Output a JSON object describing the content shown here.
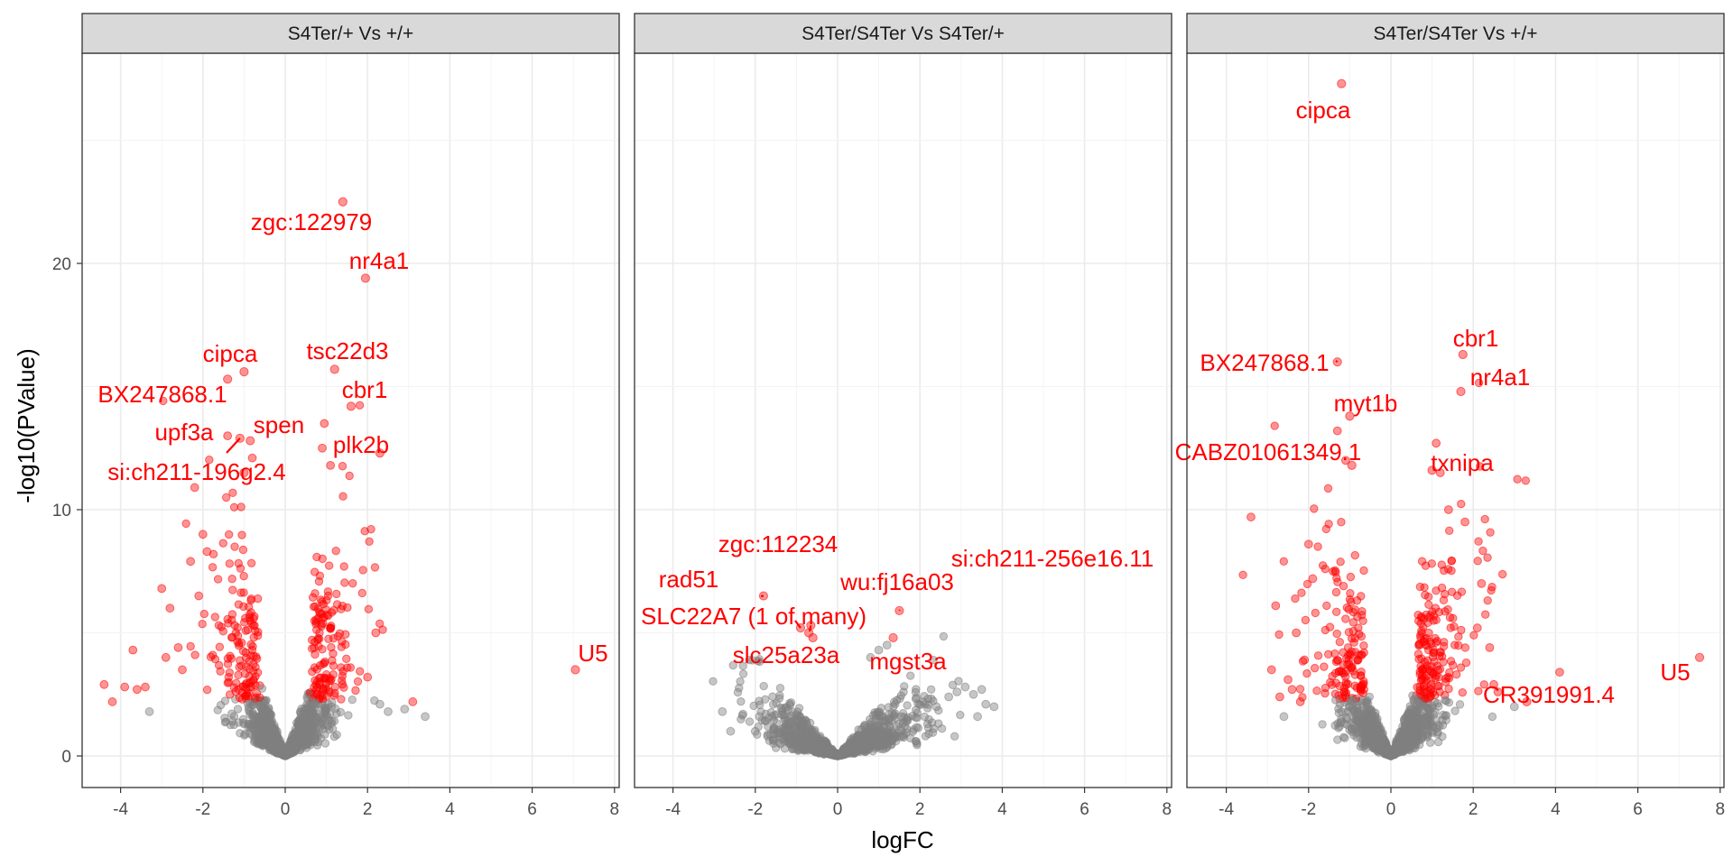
{
  "chart_data": {
    "type": "scatter",
    "xlabel": "logFC",
    "ylabel": "-log10(PValue)",
    "xlim": [
      -4.8,
      8.1
    ],
    "ylim": [
      -1.3,
      30.0
    ],
    "x_ticks": [
      -4,
      -2,
      0,
      2,
      4,
      6,
      8
    ],
    "y_ticks": [
      0,
      10,
      20
    ],
    "x_tick_labels": [
      "-4",
      "-2",
      "0",
      "2",
      "4",
      "6",
      "8"
    ],
    "y_tick_labels": [
      "0",
      "10",
      "20"
    ],
    "grid": true,
    "legend": "none",
    "colors": {
      "significant": "#ff0000",
      "not_significant": "#808080",
      "strip": "#d9d9d9"
    },
    "panels": [
      {
        "title": "S4Ter/+ Vs +/+",
        "labeled_genes": [
          {
            "label": "zgc:122979",
            "x": 1.4,
            "y": 22.5
          },
          {
            "label": "nr4a1",
            "x": 1.95,
            "y": 19.4
          },
          {
            "label": "cipca",
            "x": -1.0,
            "y": 15.6
          },
          {
            "label": "tsc22d3",
            "x": 1.2,
            "y": 15.7
          },
          {
            "label": "BX247868.1",
            "x": -1.4,
            "y": 15.3
          },
          {
            "label": "cbr1",
            "x": 1.6,
            "y": 14.2
          },
          {
            "label": "upf3a",
            "x": -1.1,
            "y": 12.9
          },
          {
            "label": "spen",
            "x": -0.85,
            "y": 12.8
          },
          {
            "label": "plk2b",
            "x": 2.3,
            "y": 12.3
          },
          {
            "label": "si:ch211-196g2.4",
            "x": -1.0,
            "y": 11.5
          },
          {
            "label": "U5",
            "x": 7.05,
            "y": 3.5
          }
        ],
        "extreme_points": [
          {
            "x": -2.2,
            "y": 10.9
          },
          {
            "x": -1.4,
            "y": 13.0
          },
          {
            "x": -0.8,
            "y": 12.1
          },
          {
            "x": 0.95,
            "y": 13.5
          },
          {
            "x": 0.9,
            "y": 12.5
          },
          {
            "x": 1.1,
            "y": 11.8
          },
          {
            "x": -4.4,
            "y": 2.9
          },
          {
            "x": -4.2,
            "y": 2.2
          },
          {
            "x": -3.9,
            "y": 2.8
          },
          {
            "x": -3.6,
            "y": 2.7
          },
          {
            "x": -3.4,
            "y": 2.8
          },
          {
            "x": -3.3,
            "y": 1.8
          },
          {
            "x": -3.7,
            "y": 4.3
          },
          {
            "x": -3.0,
            "y": 6.8
          },
          {
            "x": -2.9,
            "y": 4.0
          },
          {
            "x": -2.8,
            "y": 6.0
          },
          {
            "x": -2.6,
            "y": 4.4
          },
          {
            "x": -2.5,
            "y": 3.5
          },
          {
            "x": -2.3,
            "y": 7.9
          },
          {
            "x": -2.1,
            "y": 6.5
          },
          {
            "x": -2.0,
            "y": 9.0
          },
          {
            "x": -1.9,
            "y": 8.3
          },
          {
            "x": 2.2,
            "y": 5.0
          },
          {
            "x": 2.3,
            "y": 2.1
          },
          {
            "x": 2.5,
            "y": 1.8
          },
          {
            "x": 2.9,
            "y": 1.9
          },
          {
            "x": 3.1,
            "y": 2.2
          },
          {
            "x": 3.4,
            "y": 1.6
          },
          {
            "x": 2.0,
            "y": 3.2
          }
        ]
      },
      {
        "title": "S4Ter/S4Ter Vs S4Ter/+",
        "labeled_genes": [
          {
            "label": "zgc:112234",
            "x": -0.9,
            "y": 5.2
          },
          {
            "label": "rad51",
            "x": -1.8,
            "y": 6.5
          },
          {
            "label": "si:ch211-256e16.11",
            "x": 1.5,
            "y": 5.9
          },
          {
            "label": "wu:fj16a03",
            "x": -0.65,
            "y": 5.3
          },
          {
            "label": "SLC22A7 (1 of many)",
            "x": -0.7,
            "y": 5.0
          },
          {
            "label": "slc25a23a",
            "x": -0.6,
            "y": 4.8
          },
          {
            "label": "mgst3a",
            "x": 1.35,
            "y": 4.8
          }
        ],
        "extreme_points": [
          {
            "x": -2.8,
            "y": 1.8
          },
          {
            "x": -2.6,
            "y": 1.0
          },
          {
            "x": -2.3,
            "y": 1.7
          },
          {
            "x": -2.0,
            "y": 1.0
          },
          {
            "x": -1.9,
            "y": 1.6
          },
          {
            "x": -1.7,
            "y": 0.8
          },
          {
            "x": 0.8,
            "y": 4.0
          },
          {
            "x": 1.0,
            "y": 4.3
          },
          {
            "x": 1.2,
            "y": 4.5
          },
          {
            "x": 2.4,
            "y": 2.0
          },
          {
            "x": 2.7,
            "y": 2.4
          },
          {
            "x": 2.9,
            "y": 2.6
          },
          {
            "x": 3.1,
            "y": 2.8
          },
          {
            "x": 3.3,
            "y": 2.5
          },
          {
            "x": 3.5,
            "y": 2.7
          },
          {
            "x": 3.6,
            "y": 2.1
          },
          {
            "x": 3.8,
            "y": 2.0
          },
          {
            "x": 3.4,
            "y": 1.6
          }
        ]
      },
      {
        "title": "S4Ter/S4Ter Vs +/+",
        "labeled_genes": [
          {
            "label": "cipca",
            "x": -1.2,
            "y": 27.3
          },
          {
            "label": "cbr1",
            "x": 1.75,
            "y": 16.3
          },
          {
            "label": "BX247868.1",
            "x": -1.3,
            "y": 16.0
          },
          {
            "label": "nr4a1",
            "x": 1.7,
            "y": 14.8
          },
          {
            "label": "myt1b",
            "x": -1.0,
            "y": 13.8
          },
          {
            "label": "CABZ01061349.1",
            "x": -0.95,
            "y": 11.8
          },
          {
            "label": "txnipa",
            "x": 1.0,
            "y": 11.6
          },
          {
            "label": "CR391991.4",
            "x": 3.3,
            "y": 2.2
          },
          {
            "label": "U5",
            "x": 7.5,
            "y": 4.0
          }
        ],
        "extreme_points": [
          {
            "x": -1.3,
            "y": 13.2
          },
          {
            "x": -1.1,
            "y": 12.0
          },
          {
            "x": 1.1,
            "y": 12.7
          },
          {
            "x": 1.2,
            "y": 11.5
          },
          {
            "x": -3.4,
            "y": 9.7
          },
          {
            "x": -2.8,
            "y": 6.1
          },
          {
            "x": -2.9,
            "y": 3.5
          },
          {
            "x": -2.7,
            "y": 2.4
          },
          {
            "x": -2.5,
            "y": 3.1
          },
          {
            "x": -2.4,
            "y": 2.7
          },
          {
            "x": -2.3,
            "y": 5.0
          },
          {
            "x": -2.1,
            "y": 3.9
          },
          {
            "x": -2.0,
            "y": 8.6
          },
          {
            "x": -1.9,
            "y": 7.2
          },
          {
            "x": -2.2,
            "y": 2.2
          },
          {
            "x": -2.6,
            "y": 1.6
          },
          {
            "x": 1.4,
            "y": 10.0
          },
          {
            "x": 1.8,
            "y": 9.5
          },
          {
            "x": 2.1,
            "y": 5.2
          },
          {
            "x": 2.2,
            "y": 7.0
          },
          {
            "x": 2.4,
            "y": 4.4
          },
          {
            "x": 2.5,
            "y": 2.9
          },
          {
            "x": 2.6,
            "y": 2.6
          },
          {
            "x": 4.1,
            "y": 3.4
          },
          {
            "x": 3.0,
            "y": 2.0
          }
        ]
      }
    ]
  }
}
